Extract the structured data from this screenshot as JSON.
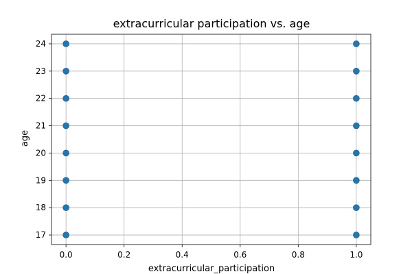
{
  "chart_data": {
    "type": "scatter",
    "title": "extracurricular participation vs. age",
    "xlabel": "extracurricular_participation",
    "ylabel": "age",
    "xlim": [
      -0.05,
      1.05
    ],
    "ylim": [
      16.65,
      24.35
    ],
    "xticks": [
      0.0,
      0.2,
      0.4,
      0.6,
      0.8,
      1.0
    ],
    "xtick_labels": [
      "0.0",
      "0.2",
      "0.4",
      "0.6",
      "0.8",
      "1.0"
    ],
    "yticks": [
      17,
      18,
      19,
      20,
      21,
      22,
      23,
      24
    ],
    "ytick_labels": [
      "17",
      "18",
      "19",
      "20",
      "21",
      "22",
      "23",
      "24"
    ],
    "grid": true,
    "marker_color": "#1f77b4",
    "points": [
      {
        "x": 0,
        "y": 17
      },
      {
        "x": 0,
        "y": 18
      },
      {
        "x": 0,
        "y": 19
      },
      {
        "x": 0,
        "y": 20
      },
      {
        "x": 0,
        "y": 21
      },
      {
        "x": 0,
        "y": 22
      },
      {
        "x": 0,
        "y": 23
      },
      {
        "x": 0,
        "y": 24
      },
      {
        "x": 1,
        "y": 17
      },
      {
        "x": 1,
        "y": 18
      },
      {
        "x": 1,
        "y": 19
      },
      {
        "x": 1,
        "y": 20
      },
      {
        "x": 1,
        "y": 21
      },
      {
        "x": 1,
        "y": 22
      },
      {
        "x": 1,
        "y": 23
      },
      {
        "x": 1,
        "y": 24
      }
    ]
  }
}
